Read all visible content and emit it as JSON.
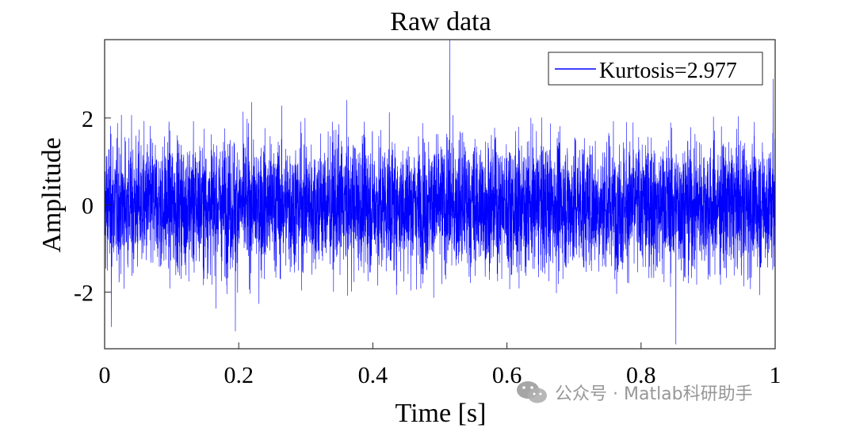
{
  "chart_data": {
    "type": "line",
    "title": "Raw data",
    "xlabel": "Time [s]",
    "ylabel": "Amplitude",
    "xlim": [
      0,
      1
    ],
    "ylim": [
      -3.3,
      3.8
    ],
    "xticks": [
      0,
      0.2,
      0.4,
      0.6,
      0.8,
      1
    ],
    "xtick_labels": [
      "0",
      "0.2",
      "0.4",
      "0.6",
      "0.8",
      "1"
    ],
    "yticks": [
      -2,
      0,
      2
    ],
    "ytick_labels": [
      "-2",
      "0",
      "2"
    ],
    "grid": false,
    "legend_position": "top-right",
    "series": [
      {
        "name": "Kurtosis=2.977",
        "color": "#0000ff",
        "description": "Gaussian-like noise, approx. mean 0, std 0.75, sampled densely over 0–1 s",
        "peaks": [
          {
            "x": 0.515,
            "y": 3.8
          },
          {
            "x": 0.852,
            "y": -3.2
          },
          {
            "x": 0.195,
            "y": -2.9
          },
          {
            "x": 0.01,
            "y": -2.8
          },
          {
            "x": 0.997,
            "y": 2.9
          }
        ]
      }
    ]
  },
  "watermark": {
    "text": "公众号 · Matlab科研助手"
  }
}
